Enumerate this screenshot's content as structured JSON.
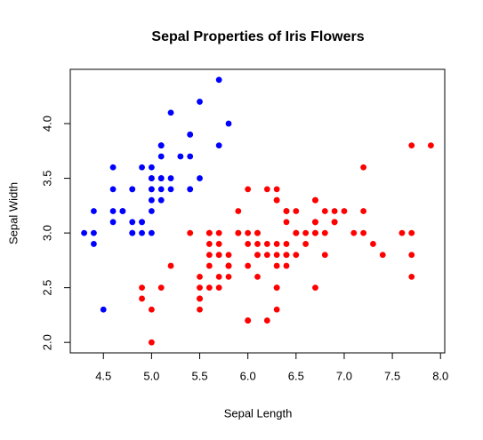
{
  "chart_data": {
    "type": "scatter",
    "title": "Sepal Properties of Iris Flowers",
    "xlabel": "Sepal Length",
    "ylabel": "Sepal Width",
    "xlim": [
      4.156,
      8.044
    ],
    "ylim": [
      1.904,
      4.496
    ],
    "xticks": [
      4.5,
      {
        "value": 5,
        "label": "5.0"
      },
      5.5,
      {
        "value": 6,
        "label": "6.0"
      },
      6.5,
      {
        "value": 7,
        "label": "7.0"
      },
      7.5,
      {
        "value": 8,
        "label": "8.0"
      }
    ],
    "yticks": [
      {
        "value": 2,
        "label": "2.0"
      },
      2.5,
      {
        "value": 3,
        "label": "3.0"
      },
      3.5,
      {
        "value": 4,
        "label": "4.0"
      }
    ],
    "series": [
      {
        "color": "#0000ff",
        "x": [
          5.1,
          4.9,
          4.7,
          4.6,
          5.0,
          5.4,
          4.6,
          5.0,
          4.4,
          4.9,
          5.4,
          4.8,
          4.8,
          4.3,
          5.8,
          5.7,
          5.4,
          5.1,
          5.7,
          5.1,
          5.4,
          5.1,
          4.6,
          5.1,
          4.8,
          5.0,
          5.0,
          5.2,
          5.2,
          4.7,
          4.8,
          5.4,
          5.2,
          5.5,
          4.9,
          5.0,
          5.5,
          4.9,
          4.4,
          5.1,
          5.0,
          4.5,
          4.4,
          5.0,
          5.1,
          4.8,
          5.1,
          4.6,
          5.3,
          5.0
        ],
        "values": [
          3.5,
          3.0,
          3.2,
          3.1,
          3.6,
          3.9,
          3.4,
          3.4,
          2.9,
          3.1,
          3.7,
          3.4,
          3.0,
          3.0,
          4.0,
          4.4,
          3.9,
          3.5,
          3.8,
          3.8,
          3.4,
          3.7,
          3.6,
          3.3,
          3.4,
          3.0,
          3.4,
          3.5,
          3.4,
          3.2,
          3.1,
          3.4,
          4.1,
          4.2,
          3.1,
          3.2,
          3.5,
          3.6,
          3.0,
          3.4,
          3.5,
          2.3,
          3.2,
          3.5,
          3.8,
          3.0,
          3.8,
          3.2,
          3.7,
          3.3
        ]
      },
      {
        "color": "#ff0000",
        "x": [
          7.0,
          6.4,
          6.9,
          5.5,
          6.5,
          5.7,
          6.3,
          4.9,
          6.6,
          5.2,
          5.0,
          5.9,
          6.0,
          6.1,
          5.6,
          6.7,
          5.6,
          5.8,
          6.2,
          5.6,
          5.9,
          6.1,
          6.3,
          6.1,
          6.4,
          6.6,
          6.8,
          6.7,
          6.0,
          5.7,
          5.5,
          5.5,
          5.8,
          6.0,
          5.4,
          6.0,
          6.7,
          6.3,
          5.6,
          5.5,
          5.5,
          6.1,
          5.8,
          5.0,
          5.6,
          5.7,
          5.7,
          6.2,
          5.1,
          5.7,
          6.3,
          5.8,
          7.1,
          6.3,
          6.5,
          7.6,
          4.9,
          7.3,
          6.7,
          7.2,
          6.5,
          6.4,
          6.8,
          5.7,
          5.8,
          6.4,
          6.5,
          7.7,
          7.7,
          6.0,
          6.9,
          5.6,
          7.7,
          6.3,
          6.7,
          7.2,
          6.2,
          6.1,
          6.4,
          7.2,
          7.4,
          7.9,
          6.4,
          6.3,
          6.1,
          7.7,
          6.3,
          6.4,
          6.0,
          6.9,
          6.7,
          6.9,
          5.8,
          6.8,
          6.7,
          6.7,
          6.3,
          6.5,
          6.2,
          5.9
        ],
        "values": [
          3.2,
          3.2,
          3.1,
          2.3,
          2.8,
          2.8,
          3.3,
          2.4,
          2.9,
          2.7,
          2.0,
          3.0,
          2.2,
          2.9,
          2.9,
          3.1,
          3.0,
          2.7,
          2.2,
          2.5,
          3.2,
          2.8,
          2.5,
          2.8,
          2.9,
          3.0,
          2.8,
          3.0,
          2.9,
          2.6,
          2.4,
          2.4,
          2.7,
          2.7,
          3.0,
          3.4,
          3.1,
          2.3,
          3.0,
          2.5,
          2.6,
          3.0,
          2.6,
          2.3,
          2.7,
          3.0,
          2.9,
          2.9,
          2.5,
          2.8,
          3.3,
          2.7,
          3.0,
          2.9,
          3.0,
          3.0,
          2.5,
          2.9,
          2.5,
          3.6,
          3.2,
          2.7,
          3.0,
          2.5,
          2.8,
          3.2,
          3.0,
          3.8,
          2.6,
          2.2,
          3.2,
          2.8,
          2.8,
          2.7,
          3.3,
          3.2,
          2.8,
          3.0,
          2.8,
          3.0,
          2.8,
          3.8,
          2.8,
          2.8,
          2.6,
          3.0,
          3.4,
          3.1,
          3.0,
          3.1,
          3.1,
          3.1,
          2.7,
          3.2,
          3.3,
          3.0,
          2.5,
          3.0,
          3.4,
          3.0
        ]
      }
    ]
  }
}
